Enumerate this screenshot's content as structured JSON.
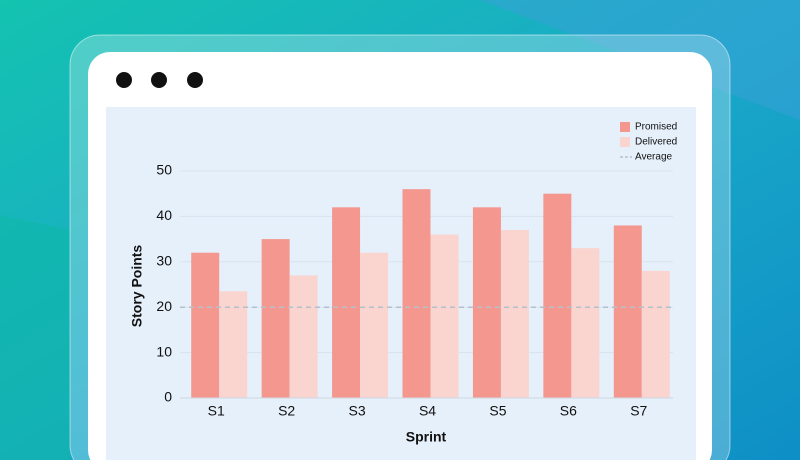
{
  "chart_data": {
    "type": "bar",
    "x_label": "Sprint",
    "y_label": "Story Points",
    "categories": [
      "S1",
      "S2",
      "S3",
      "S4",
      "S5",
      "S6",
      "S7"
    ],
    "series": [
      {
        "name": "Promised",
        "color": "#f4978e",
        "values": [
          32,
          35,
          42,
          46,
          42,
          45,
          38
        ]
      },
      {
        "name": "Delivered",
        "color": "#fad4cf",
        "values": [
          23.5,
          27,
          32,
          36,
          37,
          33,
          28
        ]
      }
    ],
    "average": {
      "name": "Average",
      "value": 20,
      "color": "#b4c0cc"
    },
    "ylim": [
      0,
      50
    ],
    "yticks": [
      0,
      10,
      20,
      30,
      40,
      50
    ],
    "grid": true,
    "legend": "top-right"
  }
}
